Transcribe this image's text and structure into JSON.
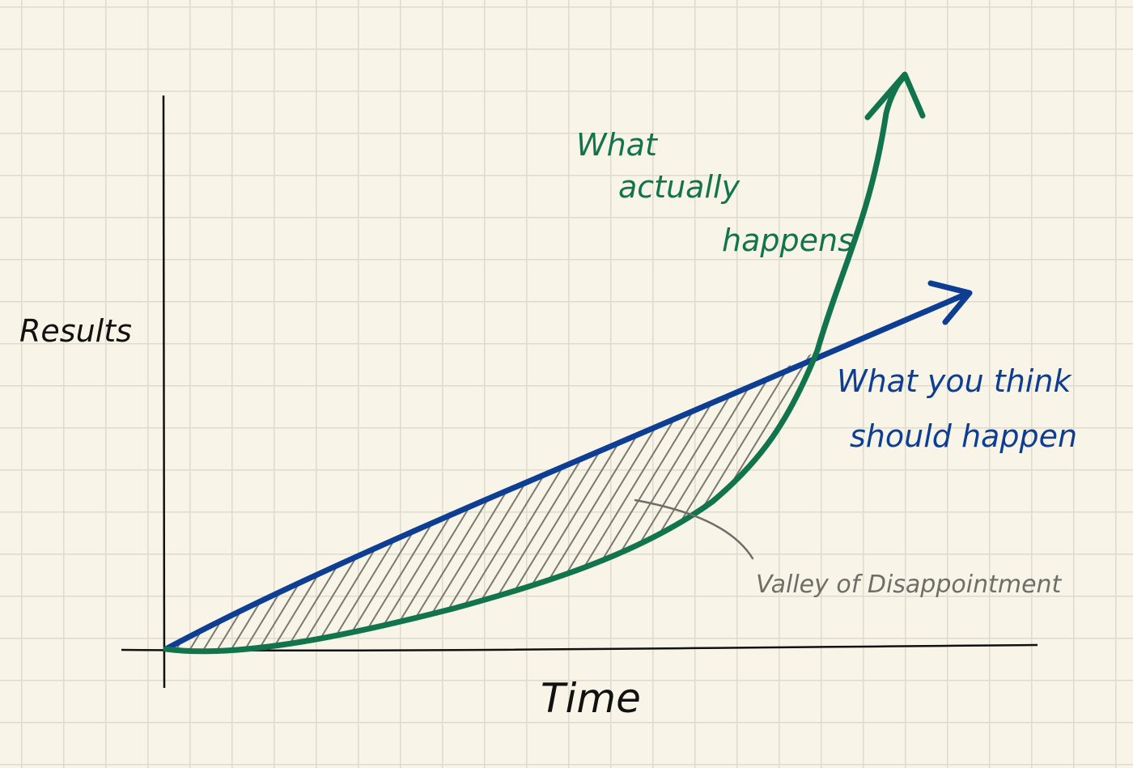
{
  "labels": {
    "y_axis": "Results",
    "x_axis": "Time",
    "actual_line1": "What",
    "actual_line2": "actually",
    "actual_line3": "happens",
    "expected_line1": "What you think",
    "expected_line2": "should happen",
    "valley": "Valley of Disappointment"
  },
  "colors": {
    "expected": "#0d3e93",
    "actual": "#11744d",
    "axis": "#111111",
    "hatch": "#7a7a72",
    "valley_text": "#6e6e68"
  }
}
